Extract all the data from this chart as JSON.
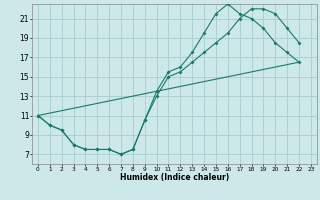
{
  "xlabel": "Humidex (Indice chaleur)",
  "background_color": "#cce8e8",
  "grid_color": "#aacccc",
  "line_color": "#1a7a6a",
  "xlim": [
    -0.5,
    23.5
  ],
  "ylim": [
    6.0,
    22.5
  ],
  "xticks": [
    0,
    1,
    2,
    3,
    4,
    5,
    6,
    7,
    8,
    9,
    10,
    11,
    12,
    13,
    14,
    15,
    16,
    17,
    18,
    19,
    20,
    21,
    22,
    23
  ],
  "yticks": [
    7,
    9,
    11,
    13,
    15,
    17,
    19,
    21
  ],
  "line1_x": [
    0,
    1,
    2,
    3,
    4,
    5,
    6,
    7,
    8,
    9,
    10,
    11,
    12,
    13,
    14,
    15,
    16,
    17,
    18,
    19,
    20,
    21,
    22
  ],
  "line1_y": [
    11,
    10,
    9.5,
    8,
    7.5,
    7.5,
    7.5,
    7,
    7.5,
    10.5,
    13,
    15,
    15.5,
    16.5,
    17.5,
    18.5,
    19.5,
    21,
    22,
    22,
    21.5,
    20,
    18.5
  ],
  "line2_x": [
    0,
    1,
    2,
    3,
    4,
    5,
    6,
    7,
    8,
    9,
    10,
    11,
    12,
    13,
    14,
    15,
    16,
    17,
    18,
    19,
    20,
    21,
    22
  ],
  "line2_y": [
    11,
    10,
    9.5,
    8,
    7.5,
    7.5,
    7.5,
    7,
    7.5,
    10.5,
    13.5,
    15.5,
    16,
    17.5,
    19.5,
    21.5,
    22.5,
    21.5,
    21,
    20,
    18.5,
    17.5,
    16.5
  ],
  "line3_x": [
    0,
    22
  ],
  "line3_y": [
    11,
    16.5
  ]
}
